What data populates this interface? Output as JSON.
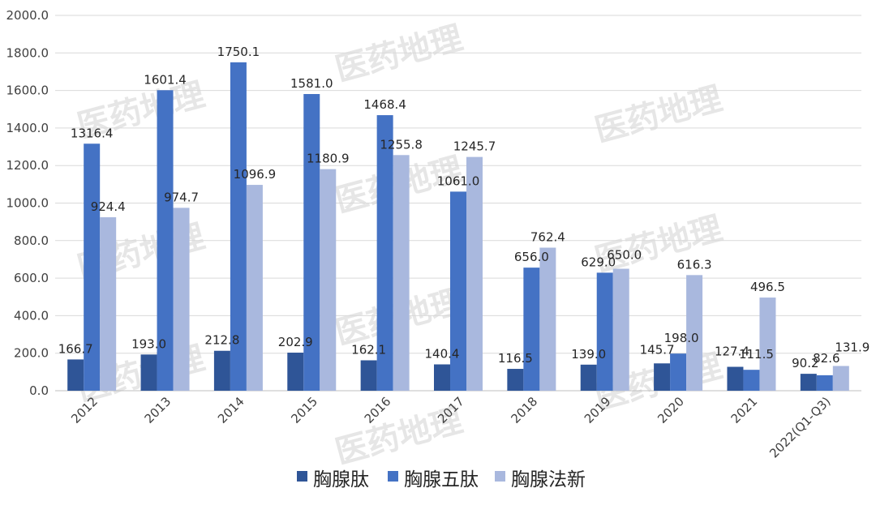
{
  "watermark": "医药地理",
  "chart_data": {
    "type": "bar",
    "title": "",
    "xlabel": "",
    "ylabel": "",
    "ylim": [
      0,
      2000
    ],
    "ytick_step": 200,
    "ytick_labels": [
      "0.0",
      "200.0",
      "400.0",
      "600.0",
      "800.0",
      "1000.0",
      "1200.0",
      "1400.0",
      "1600.0",
      "1800.0",
      "2000.0"
    ],
    "grid": true,
    "legend_position": "bottom",
    "categories": [
      "2012",
      "2013",
      "2014",
      "2015",
      "2016",
      "2017",
      "2018",
      "2019",
      "2020",
      "2021",
      "2022(Q1-Q3)"
    ],
    "series": [
      {
        "name": "胸腺肽",
        "color": "#2f5597",
        "values": [
          166.7,
          193.0,
          212.8,
          202.9,
          162.1,
          140.4,
          116.5,
          139.0,
          145.7,
          127.4,
          90.2
        ],
        "labels": [
          "166.7",
          "193.0",
          "212.8",
          "202.9",
          "162.1",
          "140.4",
          "116.5",
          "139.0",
          "145.7",
          "127.4",
          "90.2"
        ]
      },
      {
        "name": "胸腺五肽",
        "color": "#4472c4",
        "values": [
          1316.4,
          1601.4,
          1750.1,
          1581.0,
          1468.4,
          1061.0,
          656.0,
          629.0,
          198.0,
          111.5,
          82.6
        ],
        "labels": [
          "1316.4",
          "1601.4",
          "1750.1",
          "1581.0",
          "1468.4",
          "1061.0",
          "656.0",
          "629.0",
          "198.0",
          "111.5",
          "82.6"
        ]
      },
      {
        "name": "胸腺法新",
        "color": "#a9b8de",
        "values": [
          924.4,
          974.7,
          1096.9,
          1180.9,
          1255.8,
          1245.7,
          762.4,
          650.0,
          616.3,
          496.5,
          131.9
        ],
        "labels": [
          "924.4",
          "974.7",
          "1096.9",
          "1180.9",
          "1255.8",
          "1245.7",
          "762.4",
          "650.0",
          "616.3",
          "496.5",
          "131.9"
        ]
      }
    ]
  }
}
